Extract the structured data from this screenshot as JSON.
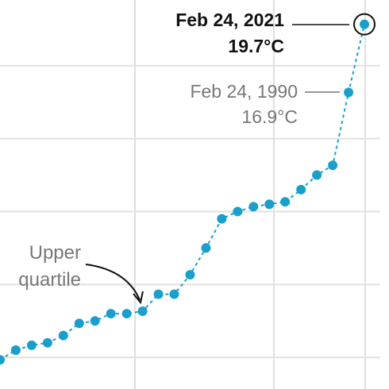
{
  "chart_data": {
    "type": "line",
    "categories": [
      null,
      null,
      null,
      null,
      null,
      null,
      null,
      null,
      null,
      null,
      null,
      null,
      null,
      null,
      null,
      null,
      null,
      null,
      null,
      null,
      null,
      null,
      null,
      null
    ],
    "values": [
      5.9,
      6.3,
      6.5,
      6.6,
      6.9,
      7.4,
      7.5,
      7.8,
      7.8,
      7.9,
      8.6,
      8.6,
      9.4,
      10.5,
      11.7,
      12.0,
      12.2,
      12.3,
      12.4,
      12.9,
      13.5,
      13.9,
      16.9,
      19.7
    ],
    "value_labels": [
      null,
      null,
      null,
      null,
      null,
      null,
      null,
      null,
      null,
      null,
      null,
      null,
      null,
      null,
      null,
      null,
      null,
      null,
      null,
      null,
      null,
      null,
      "16.9°C",
      "19.7°C"
    ],
    "annotations": [
      "Feb 24, 1990",
      "Feb 24, 2021",
      "Upper quartile"
    ],
    "color": "#1a9fcc",
    "ylim": [
      4.7,
      20.7
    ],
    "yticks": [
      6,
      9,
      12,
      15,
      18
    ],
    "grid": true
  }
}
